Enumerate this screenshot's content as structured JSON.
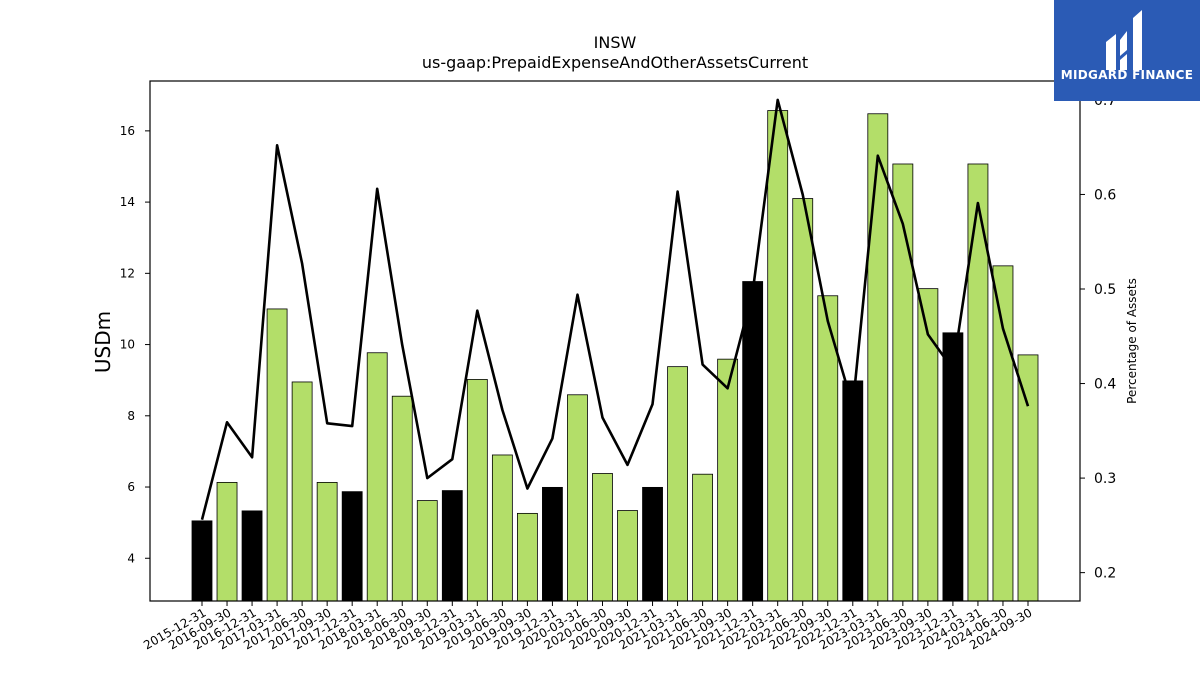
{
  "chart_data": {
    "type": "bar",
    "title": "INSW",
    "subtitle": "us-gaap:PrepaidExpenseAndOtherAssetsCurrent",
    "ylabel": "USDm",
    "y2label": "Percentage of Assets",
    "ylim": [
      2.8,
      17.4
    ],
    "y2lim": [
      0.17,
      0.72
    ],
    "yticks": [
      4,
      6,
      8,
      10,
      12,
      14,
      16
    ],
    "y2ticks": [
      0.2,
      0.3,
      0.4,
      0.5,
      0.6,
      0.7
    ],
    "categories": [
      "2015-12-31",
      "2016-09-30",
      "2016-12-31",
      "2017-03-31",
      "2017-06-30",
      "2017-09-30",
      "2017-12-31",
      "2018-03-31",
      "2018-06-30",
      "2018-09-30",
      "2018-12-31",
      "2019-03-31",
      "2019-06-30",
      "2019-09-30",
      "2019-12-31",
      "2020-03-31",
      "2020-06-30",
      "2020-09-30",
      "2020-12-31",
      "2021-03-31",
      "2021-06-30",
      "2021-09-30",
      "2021-12-31",
      "2022-03-31",
      "2022-06-30",
      "2022-09-30",
      "2022-12-31",
      "2023-03-31",
      "2023-06-30",
      "2023-09-30",
      "2023-12-31",
      "2024-03-31",
      "2024-06-30",
      "2024-09-30"
    ],
    "series": [
      {
        "name": "USDm",
        "type": "bar",
        "values": [
          5.05,
          6.13,
          5.33,
          11.0,
          8.95,
          6.13,
          5.87,
          9.77,
          8.55,
          5.62,
          5.9,
          9.02,
          6.9,
          5.26,
          5.99,
          8.59,
          6.38,
          5.34,
          5.99,
          9.38,
          6.36,
          9.59,
          11.77,
          16.57,
          14.1,
          11.37,
          8.98,
          16.48,
          15.07,
          11.57,
          10.33,
          15.07,
          12.21,
          9.71
        ],
        "colors": [
          "#000000",
          "#b3de69",
          "#000000",
          "#b3de69",
          "#b3de69",
          "#b3de69",
          "#000000",
          "#b3de69",
          "#b3de69",
          "#b3de69",
          "#000000",
          "#b3de69",
          "#b3de69",
          "#b3de69",
          "#000000",
          "#b3de69",
          "#b3de69",
          "#b3de69",
          "#000000",
          "#b3de69",
          "#b3de69",
          "#b3de69",
          "#000000",
          "#b3de69",
          "#b3de69",
          "#b3de69",
          "#000000",
          "#b3de69",
          "#b3de69",
          "#b3de69",
          "#000000",
          "#b3de69",
          "#b3de69",
          "#b3de69"
        ]
      },
      {
        "name": "Percentage of Assets",
        "type": "line",
        "axis": "right",
        "color": "#000000",
        "values": [
          0.256,
          0.359,
          0.322,
          0.652,
          0.527,
          0.358,
          0.355,
          0.606,
          0.441,
          0.3,
          0.32,
          0.477,
          0.372,
          0.289,
          0.342,
          0.494,
          0.364,
          0.314,
          0.378,
          0.603,
          0.42,
          0.395,
          0.497,
          0.7,
          0.6,
          0.466,
          0.376,
          0.641,
          0.569,
          0.452,
          0.415,
          0.591,
          0.458,
          0.376
        ]
      }
    ],
    "grid": false
  },
  "logo": {
    "text": "MIDGARD FINANCE",
    "background": "#2b5bb5"
  }
}
